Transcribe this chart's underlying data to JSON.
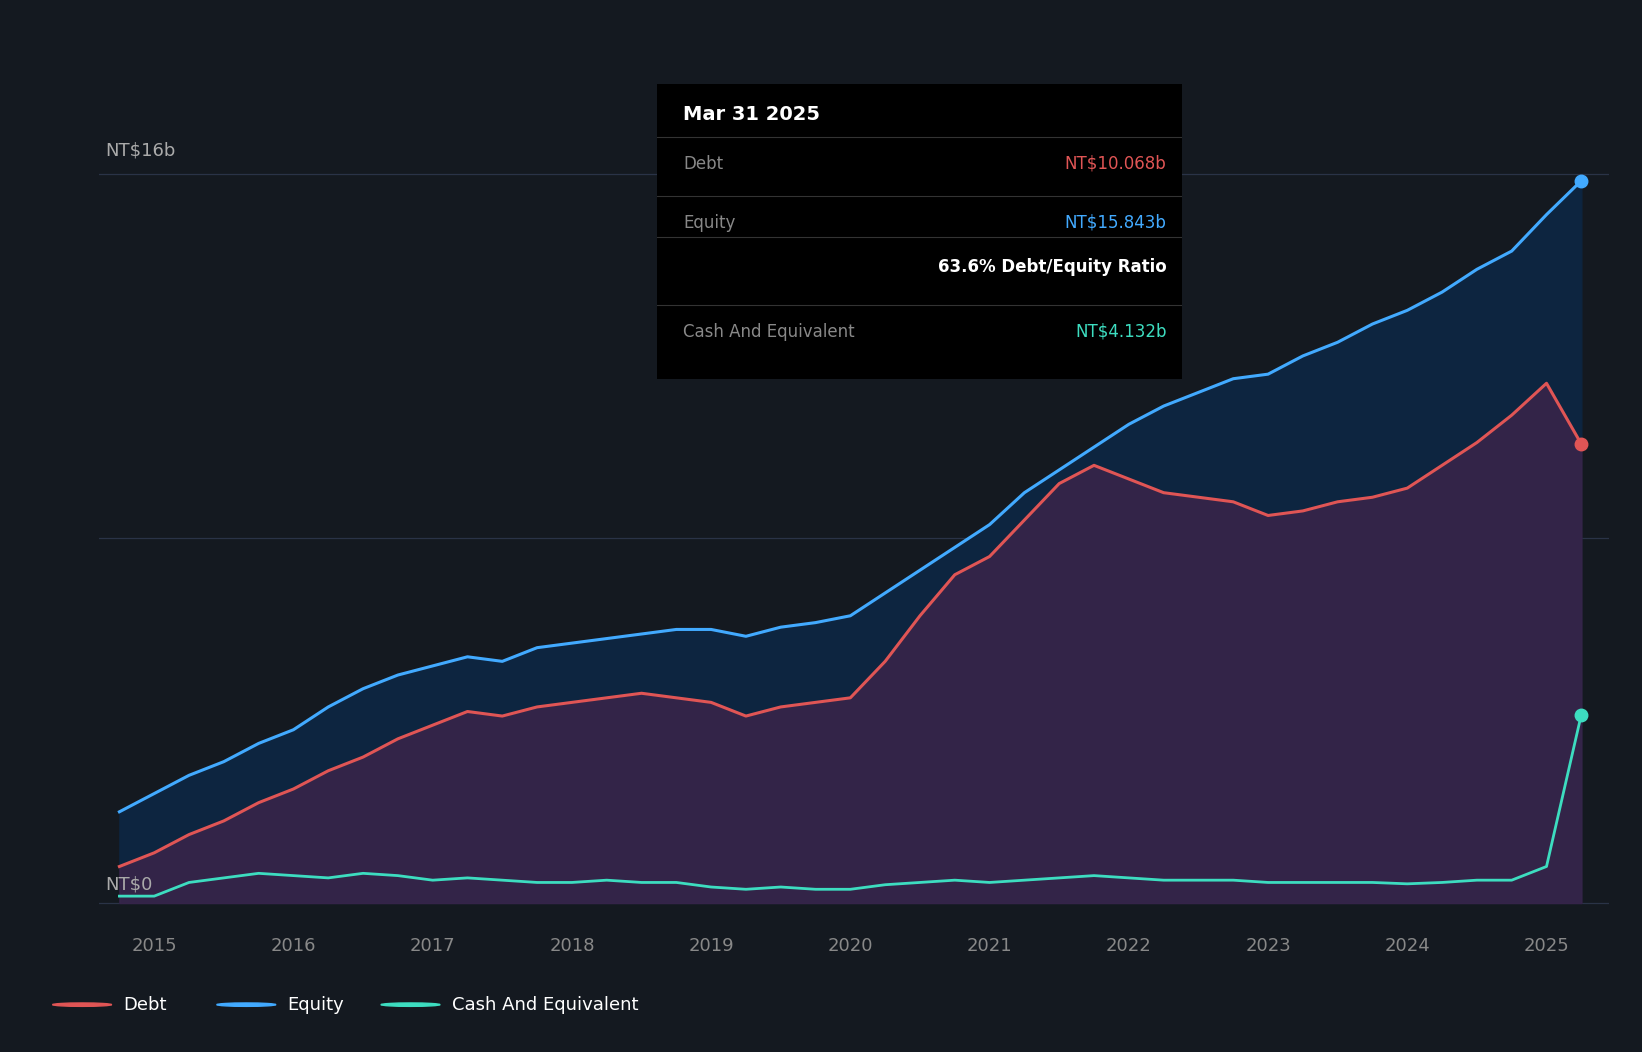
{
  "bg_color": "#141920",
  "grid_color": "#2d3748",
  "tooltip_title": "Mar 31 2025",
  "tooltip_debt_label": "Debt",
  "tooltip_debt_value": "NT$10.068b",
  "tooltip_equity_label": "Equity",
  "tooltip_equity_value": "NT$15.843b",
  "tooltip_ratio": "63.6% Debt/Equity Ratio",
  "tooltip_cash_label": "Cash And Equivalent",
  "tooltip_cash_value": "NT$4.132b",
  "debt_color": "#e05555",
  "equity_color": "#42aaff",
  "cash_color": "#3dddc0",
  "xlim_start": 2014.6,
  "xlim_end": 2025.45,
  "ylim_min": -0.5,
  "ylim_max": 17.5,
  "legend_items": [
    "Debt",
    "Equity",
    "Cash And Equivalent"
  ],
  "legend_colors": [
    "#e05555",
    "#42aaff",
    "#3dddc0"
  ],
  "dates": [
    2014.75,
    2015.0,
    2015.25,
    2015.5,
    2015.75,
    2016.0,
    2016.25,
    2016.5,
    2016.75,
    2017.0,
    2017.25,
    2017.5,
    2017.75,
    2018.0,
    2018.25,
    2018.5,
    2018.75,
    2019.0,
    2019.25,
    2019.5,
    2019.75,
    2020.0,
    2020.25,
    2020.5,
    2020.75,
    2021.0,
    2021.25,
    2021.5,
    2021.75,
    2022.0,
    2022.25,
    2022.5,
    2022.75,
    2023.0,
    2023.25,
    2023.5,
    2023.75,
    2024.0,
    2024.25,
    2024.5,
    2024.75,
    2025.0,
    2025.25
  ],
  "equity": [
    2.0,
    2.4,
    2.8,
    3.1,
    3.5,
    3.8,
    4.3,
    4.7,
    5.0,
    5.2,
    5.4,
    5.3,
    5.6,
    5.7,
    5.8,
    5.9,
    6.0,
    6.0,
    5.85,
    6.05,
    6.15,
    6.3,
    6.8,
    7.3,
    7.8,
    8.3,
    9.0,
    9.5,
    10.0,
    10.5,
    10.9,
    11.2,
    11.5,
    11.6,
    12.0,
    12.3,
    12.7,
    13.0,
    13.4,
    13.9,
    14.3,
    15.1,
    15.843
  ],
  "debt": [
    0.8,
    1.1,
    1.5,
    1.8,
    2.2,
    2.5,
    2.9,
    3.2,
    3.6,
    3.9,
    4.2,
    4.1,
    4.3,
    4.4,
    4.5,
    4.6,
    4.5,
    4.4,
    4.1,
    4.3,
    4.4,
    4.5,
    5.3,
    6.3,
    7.2,
    7.6,
    8.4,
    9.2,
    9.6,
    9.3,
    9.0,
    8.9,
    8.8,
    8.5,
    8.6,
    8.8,
    8.9,
    9.1,
    9.6,
    10.1,
    10.7,
    11.4,
    10.068
  ],
  "cash": [
    0.15,
    0.15,
    0.45,
    0.55,
    0.65,
    0.6,
    0.55,
    0.65,
    0.6,
    0.5,
    0.55,
    0.5,
    0.45,
    0.45,
    0.5,
    0.45,
    0.45,
    0.35,
    0.3,
    0.35,
    0.3,
    0.3,
    0.4,
    0.45,
    0.5,
    0.45,
    0.5,
    0.55,
    0.6,
    0.55,
    0.5,
    0.5,
    0.5,
    0.45,
    0.45,
    0.45,
    0.45,
    0.42,
    0.45,
    0.5,
    0.5,
    0.8,
    4.132
  ]
}
